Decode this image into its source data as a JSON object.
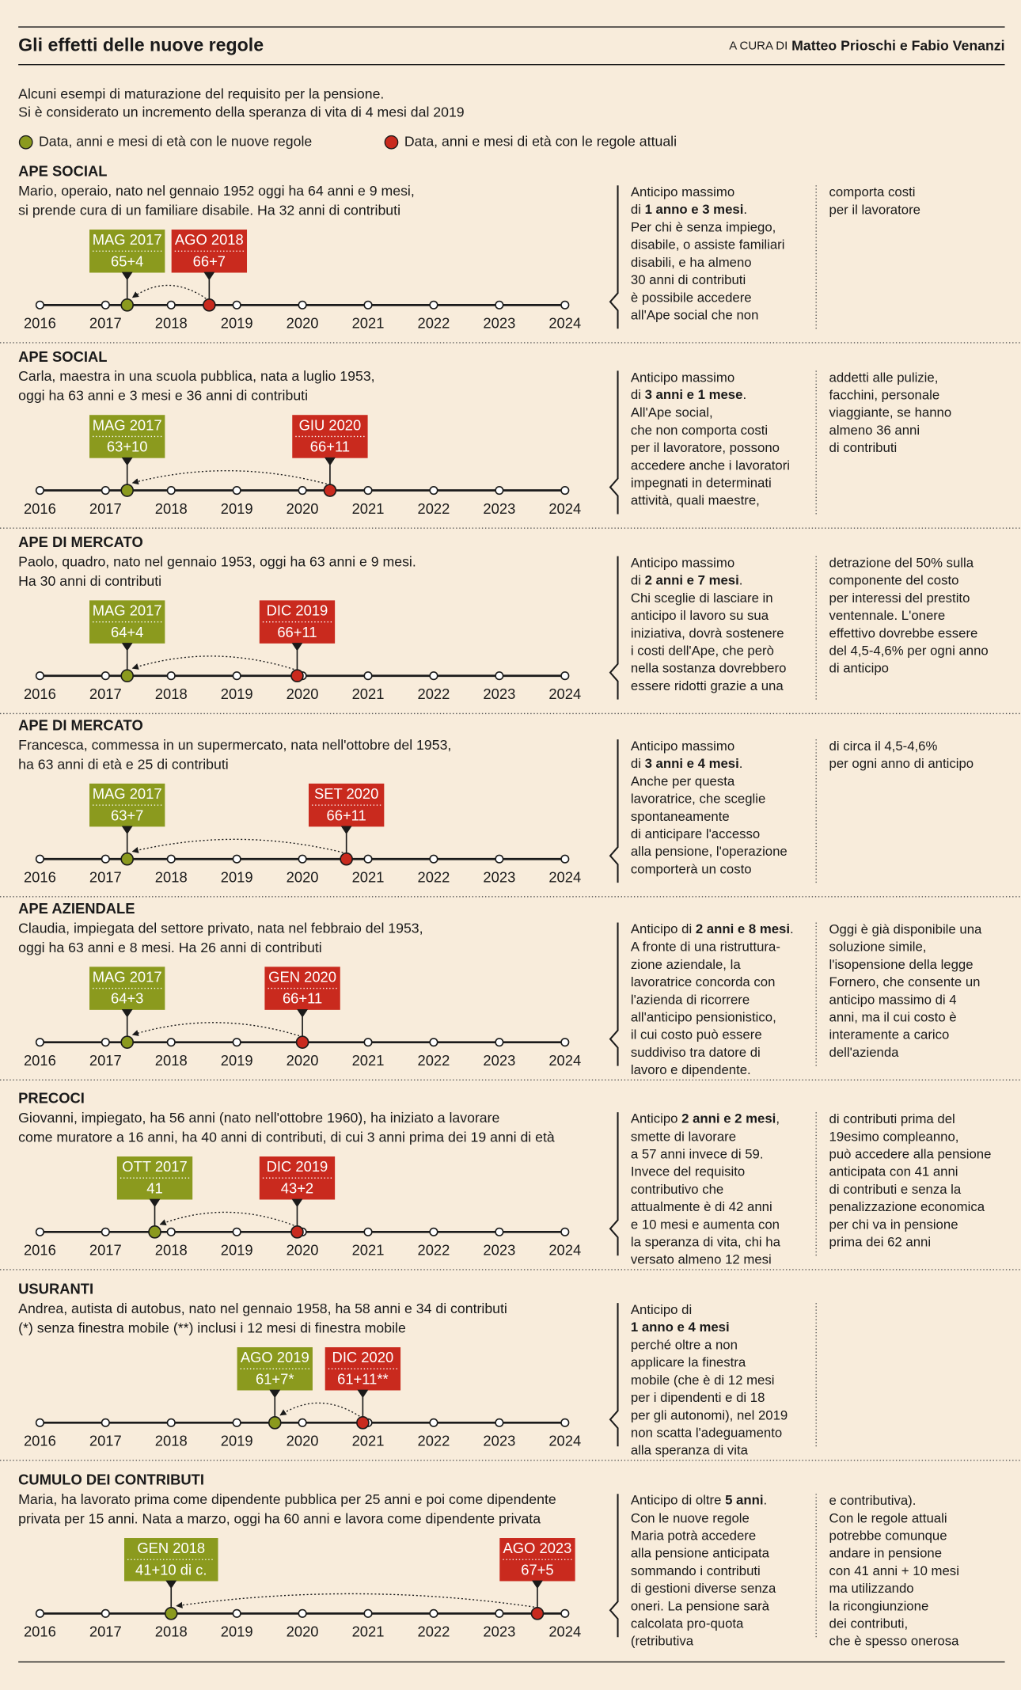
{
  "header": {
    "title": "Gli effetti delle nuove regole",
    "byline_prefix": "A CURA DI",
    "byline": "Matteo Prioschi e Fabio Venanzi"
  },
  "intro": [
    "Alcuni esempi di maturazione del requisito per la pensione.",
    "Si è considerato un incremento della speranza di vita di 4 mesi dal 2019"
  ],
  "legend": [
    {
      "label": "Data, anni e mesi di età con le nuove regole",
      "color": "#8b9a1e"
    },
    {
      "label": "Data, anni e mesi di età con le regole attuali",
      "color": "#c92a1e"
    }
  ],
  "chart_data": [
    {
      "type": "timeline",
      "title": "APE SOCIAL",
      "description": [
        "Mario, operaio, nato nel gennaio 1952 oggi ha 64 anni e 9 mesi,",
        "si prende cura di un familiare disabile. Ha 32 anni di contributi"
      ],
      "notes": [
        [
          "Anticipo massimo",
          [
            "di ",
            {
              "bold": "1 anno e 3 mesi"
            },
            "."
          ],
          "Per chi è senza impiego,",
          "disabile, o assiste familiari",
          "disabili, e ha almeno",
          "30 anni di contributi",
          "è possibile accedere",
          "all'Ape social che non"
        ],
        [
          "comporta costi",
          "per il lavoratore"
        ]
      ],
      "xlim": [
        2016,
        2024
      ],
      "xticks": [
        2016,
        2017,
        2018,
        2019,
        2020,
        2021,
        2022,
        2023,
        2024
      ],
      "events": [
        {
          "date": "MAG 2017",
          "age": "65+4",
          "x": 2017.33,
          "color": "#8b9a1e"
        },
        {
          "date": "AGO 2018",
          "age": "66+7",
          "x": 2018.58,
          "color": "#c92a1e"
        }
      ]
    },
    {
      "type": "timeline",
      "title": "APE SOCIAL",
      "description": [
        "Carla, maestra in una scuola pubblica, nata a luglio 1953,",
        "oggi ha 63 anni e 3 mesi e 36 anni di contributi"
      ],
      "notes": [
        [
          "Anticipo massimo",
          [
            "di ",
            {
              "bold": "3 anni e 1 mese"
            },
            "."
          ],
          "All'Ape social,",
          "che non comporta costi",
          "per il lavoratore, possono",
          "accedere anche i lavoratori",
          "impegnati in determinati",
          "attività, quali maestre,"
        ],
        [
          "addetti alle pulizie,",
          "facchini, personale",
          "viaggiante, se hanno",
          "almeno 36 anni",
          "di contributi"
        ]
      ],
      "xlim": [
        2016,
        2024
      ],
      "xticks": [
        2016,
        2017,
        2018,
        2019,
        2020,
        2021,
        2022,
        2023,
        2024
      ],
      "events": [
        {
          "date": "MAG 2017",
          "age": "63+10",
          "x": 2017.33,
          "color": "#8b9a1e"
        },
        {
          "date": "GIU 2020",
          "age": "66+11",
          "x": 2020.42,
          "color": "#c92a1e"
        }
      ]
    },
    {
      "type": "timeline",
      "title": "APE DI MERCATO",
      "description": [
        "Paolo, quadro, nato nel gennaio 1953, oggi ha 63 anni e 9 mesi.",
        "Ha 30 anni di contributi"
      ],
      "notes": [
        [
          "Anticipo massimo",
          [
            "di ",
            {
              "bold": "2 anni e 7 mesi"
            },
            "."
          ],
          "Chi sceglie di lasciare in",
          "anticipo il lavoro su sua",
          "iniziativa, dovrà sostenere",
          "i costi dell'Ape, che però",
          "nella sostanza dovrebbero",
          "essere ridotti grazie a una"
        ],
        [
          "detrazione del 50% sulla",
          "componente del costo",
          "per interessi del prestito",
          "ventennale. L'onere",
          "effettivo dovrebbe essere",
          "del 4,5-4,6% per ogni anno",
          "di anticipo"
        ]
      ],
      "xlim": [
        2016,
        2024
      ],
      "xticks": [
        2016,
        2017,
        2018,
        2019,
        2020,
        2021,
        2022,
        2023,
        2024
      ],
      "events": [
        {
          "date": "MAG 2017",
          "age": "64+4",
          "x": 2017.33,
          "color": "#8b9a1e"
        },
        {
          "date": "DIC 2019",
          "age": "66+11",
          "x": 2019.92,
          "color": "#c92a1e"
        }
      ]
    },
    {
      "type": "timeline",
      "title": "APE DI MERCATO",
      "description": [
        "Francesca, commessa in un supermercato, nata nell'ottobre del 1953,",
        "ha 63 anni di età e 25 di contributi"
      ],
      "notes": [
        [
          "Anticipo massimo",
          [
            "di ",
            {
              "bold": "3 anni e 4 mesi"
            },
            "."
          ],
          "Anche per questa",
          "lavoratrice, che sceglie",
          "spontaneamente",
          "di anticipare l'accesso",
          "alla pensione, l'operazione",
          "comporterà un costo"
        ],
        [
          "di circa il 4,5-4,6%",
          "per ogni anno di anticipo"
        ]
      ],
      "xlim": [
        2016,
        2024
      ],
      "xticks": [
        2016,
        2017,
        2018,
        2019,
        2020,
        2021,
        2022,
        2023,
        2024
      ],
      "events": [
        {
          "date": "MAG 2017",
          "age": "63+7",
          "x": 2017.33,
          "color": "#8b9a1e"
        },
        {
          "date": "SET 2020",
          "age": "66+11",
          "x": 2020.67,
          "color": "#c92a1e"
        }
      ]
    },
    {
      "type": "timeline",
      "title": "APE AZIENDALE",
      "description": [
        "Claudia, impiegata del settore privato, nata nel febbraio del 1953,",
        "oggi ha 63 anni e 8 mesi. Ha 26 anni di contributi"
      ],
      "notes": [
        [
          [
            "Anticipo di ",
            {
              "bold": "2 anni e 8 mesi"
            },
            "."
          ],
          "A fronte di una ristruttura-",
          "zione aziendale, la",
          "lavoratrice concorda con",
          "l'azienda di ricorrere",
          "all'anticipo pensionistico,",
          "il cui costo può essere",
          "suddiviso tra datore di",
          "lavoro e dipendente."
        ],
        [
          "Oggi è già disponibile una",
          "soluzione simile,",
          "l'isopensione della legge",
          "Fornero, che consente un",
          "anticipo massimo di 4",
          "anni, ma il cui costo è",
          "interamente a carico",
          "dell'azienda"
        ]
      ],
      "xlim": [
        2016,
        2024
      ],
      "xticks": [
        2016,
        2017,
        2018,
        2019,
        2020,
        2021,
        2022,
        2023,
        2024
      ],
      "events": [
        {
          "date": "MAG 2017",
          "age": "64+3",
          "x": 2017.33,
          "color": "#8b9a1e"
        },
        {
          "date": "GEN 2020",
          "age": "66+11",
          "x": 2020.0,
          "color": "#c92a1e"
        }
      ]
    },
    {
      "type": "timeline",
      "title": "PRECOCI",
      "description": [
        "Giovanni, impiegato, ha 56 anni (nato nell'ottobre 1960), ha iniziato a lavorare",
        "come muratore a 16 anni, ha 40 anni di contributi, di cui 3 anni prima dei 19 anni di età"
      ],
      "notes": [
        [
          [
            "Anticipo ",
            {
              "bold": "2 anni e 2 mesi"
            },
            ","
          ],
          "smette di lavorare",
          "a 57 anni invece di 59.",
          "Invece del requisito",
          "contributivo che",
          "attualmente è di 42 anni",
          "e 10 mesi e aumenta con",
          "la speranza di vita, chi ha",
          "versato almeno 12 mesi"
        ],
        [
          "di contributi prima del",
          "19esimo compleanno,",
          "può accedere alla pensione",
          "anticipata con 41 anni",
          "di contributi e senza la",
          "penalizzazione economica",
          "per chi va in pensione",
          "prima dei 62 anni"
        ]
      ],
      "xlim": [
        2016,
        2024
      ],
      "xticks": [
        2016,
        2017,
        2018,
        2019,
        2020,
        2021,
        2022,
        2023,
        2024
      ],
      "events": [
        {
          "date": "OTT 2017",
          "age": "41",
          "x": 2017.75,
          "color": "#8b9a1e"
        },
        {
          "date": "DIC 2019",
          "age": "43+2",
          "x": 2019.92,
          "color": "#c92a1e"
        }
      ]
    },
    {
      "type": "timeline",
      "title": "USURANTI",
      "description": [
        "Andrea, autista di autobus, nato nel gennaio 1958, ha 58 anni e 34 di contributi",
        "(*) senza finestra mobile (**) inclusi i 12 mesi di finestra mobile"
      ],
      "notes": [
        [
          "Anticipo di",
          [
            {
              "bold": "1 anno e 4 mesi"
            }
          ],
          "perché oltre a non",
          "applicare la finestra",
          "mobile (che è di 12 mesi",
          "per i dipendenti e di 18",
          "per gli autonomi), nel 2019",
          "non scatta l'adeguamento",
          "alla speranza di vita"
        ]
      ],
      "xlim": [
        2016,
        2024
      ],
      "xticks": [
        2016,
        2017,
        2018,
        2019,
        2020,
        2021,
        2022,
        2023,
        2024
      ],
      "events": [
        {
          "date": "AGO 2019",
          "age": "61+7*",
          "x": 2019.58,
          "color": "#8b9a1e"
        },
        {
          "date": "DIC 2020",
          "age": "61+11**",
          "x": 2020.92,
          "color": "#c92a1e"
        }
      ]
    },
    {
      "type": "timeline",
      "title": "CUMULO DEI CONTRIBUTI",
      "description": [
        "Maria, ha lavorato prima come dipendente pubblica per 25 anni e poi come dipendente",
        "privata per 15 anni. Nata a marzo, oggi ha 60 anni e lavora come dipendente privata"
      ],
      "notes": [
        [
          [
            "Anticipo di oltre ",
            {
              "bold": "5 anni"
            },
            "."
          ],
          "Con le nuove regole",
          "Maria potrà accedere",
          "alla pensione anticipata",
          "sommando i contributi",
          "di gestioni diverse senza",
          "oneri. La pensione sarà",
          "calcolata pro-quota",
          "(retributiva"
        ],
        [
          "e contributiva).",
          "Con le regole attuali",
          "potrebbe comunque",
          "andare in pensione",
          "con 41 anni + 10 mesi",
          "ma utilizzando",
          "la ricongiunzione",
          "dei contributi,",
          "che è spesso onerosa"
        ]
      ],
      "xlim": [
        2016,
        2024
      ],
      "xticks": [
        2016,
        2017,
        2018,
        2019,
        2020,
        2021,
        2022,
        2023,
        2024
      ],
      "events": [
        {
          "date": "GEN 2018",
          "age": "41+10 di c.",
          "x": 2018.0,
          "color": "#8b9a1e"
        },
        {
          "date": "AGO 2023",
          "age": "67+5",
          "x": 2023.58,
          "color": "#c92a1e"
        }
      ]
    }
  ]
}
